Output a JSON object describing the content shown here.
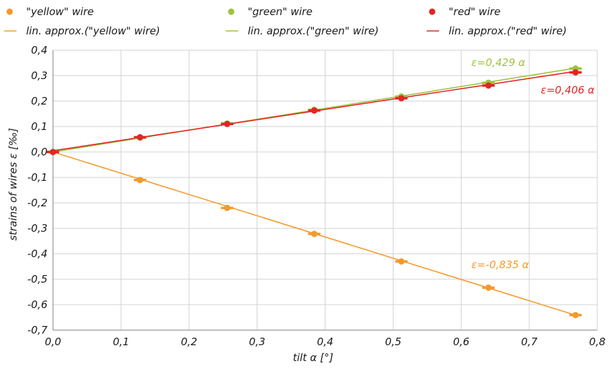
{
  "chart_data": {
    "type": "scatter",
    "title": "",
    "xlabel": "tilt  α [°]",
    "ylabel": "strains of wires ε [‰]",
    "xlim": [
      0,
      0.8
    ],
    "ylim": [
      -0.7,
      0.4
    ],
    "x_ticks": [
      "0,0",
      "0,1",
      "0,2",
      "0,3",
      "0,4",
      "0,5",
      "0,6",
      "0,7",
      "0,8"
    ],
    "y_ticks": [
      "0,4",
      "0,3",
      "0,2",
      "0,1",
      "0,0",
      "-0,1",
      "-0,2",
      "-0,3",
      "-0,4",
      "-0,5",
      "-0,6",
      "-0,7"
    ],
    "grid": true,
    "legend_position": "top",
    "series": [
      {
        "name": "\"yellow\" wire",
        "color": "#f39a2c",
        "x": [
          0,
          0.128,
          0.256,
          0.384,
          0.512,
          0.64,
          0.768
        ],
        "y": [
          0,
          -0.11,
          -0.22,
          -0.322,
          -0.43,
          -0.533,
          -0.641
        ]
      },
      {
        "name": "\"green\" wire",
        "color": "#9cc43d",
        "x": [
          0,
          0.128,
          0.256,
          0.384,
          0.512,
          0.64,
          0.768
        ],
        "y": [
          0,
          0.056,
          0.112,
          0.166,
          0.218,
          0.272,
          0.328
        ]
      },
      {
        "name": "\"red\" wire",
        "color": "#e42526",
        "x": [
          0,
          0.128,
          0.256,
          0.384,
          0.512,
          0.64,
          0.768
        ],
        "y": [
          0,
          0.058,
          0.11,
          0.163,
          0.211,
          0.261,
          0.313
        ]
      }
    ],
    "fits": [
      {
        "name": "lin. approx.(\"yellow\" wire)",
        "color": "#f39a2c",
        "slope": -0.835,
        "intercept": 0,
        "label": "ε=-0,835  α"
      },
      {
        "name": "lin. approx.(\"green\" wire)",
        "color": "#9cc43d",
        "slope": 0.429,
        "intercept": 0,
        "label": "ε=0,429  α"
      },
      {
        "name": "lin. approx.(\"red\" wire)",
        "color": "#e42526",
        "slope": 0.406,
        "intercept": 0.005,
        "label": "ε=0,406  α"
      }
    ]
  }
}
